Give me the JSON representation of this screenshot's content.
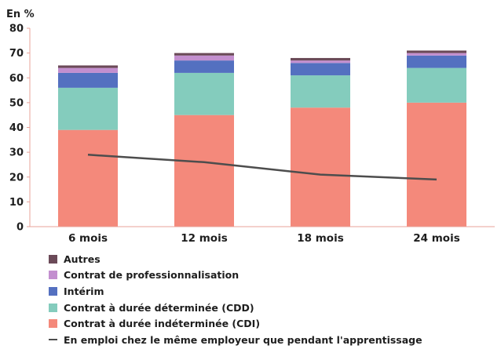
{
  "chart_data": {
    "type": "bar",
    "stacked": true,
    "unit_label": "En %",
    "categories": [
      "6 mois",
      "12 mois",
      "18 mois",
      "24 mois"
    ],
    "ylim": [
      0,
      80
    ],
    "yticks": [
      0,
      10,
      20,
      30,
      40,
      50,
      60,
      70,
      80
    ],
    "grid": false,
    "legend_position": "bottom-left",
    "series": [
      {
        "name": "Contrat à durée indéterminée (CDI)",
        "color": "#f4897b",
        "values": [
          39,
          45,
          48,
          50
        ]
      },
      {
        "name": "Contrat à durée déterminée (CDD)",
        "color": "#84ccbd",
        "values": [
          17,
          17,
          13,
          14
        ]
      },
      {
        "name": "Intérim",
        "color": "#5470c0",
        "values": [
          6,
          5,
          5,
          5
        ]
      },
      {
        "name": "Contrat de professionnalisation",
        "color": "#c38fcf",
        "values": [
          2,
          2,
          1,
          1
        ]
      },
      {
        "name": "Autres",
        "color": "#6b4a58",
        "values": [
          1,
          1,
          1,
          1
        ]
      }
    ],
    "line": {
      "name": "En emploi chez le même employeur que pendant l'apprentissage",
      "color": "#4d4d4d",
      "values": [
        29,
        26,
        21,
        19
      ]
    },
    "legend_order": [
      "Autres",
      "Contrat de professionnalisation",
      "Intérim",
      "Contrat à durée déterminée (CDD)",
      "Contrat à durée indéterminée (CDI)",
      "En emploi chez le même employeur que pendant l'apprentissage"
    ]
  }
}
